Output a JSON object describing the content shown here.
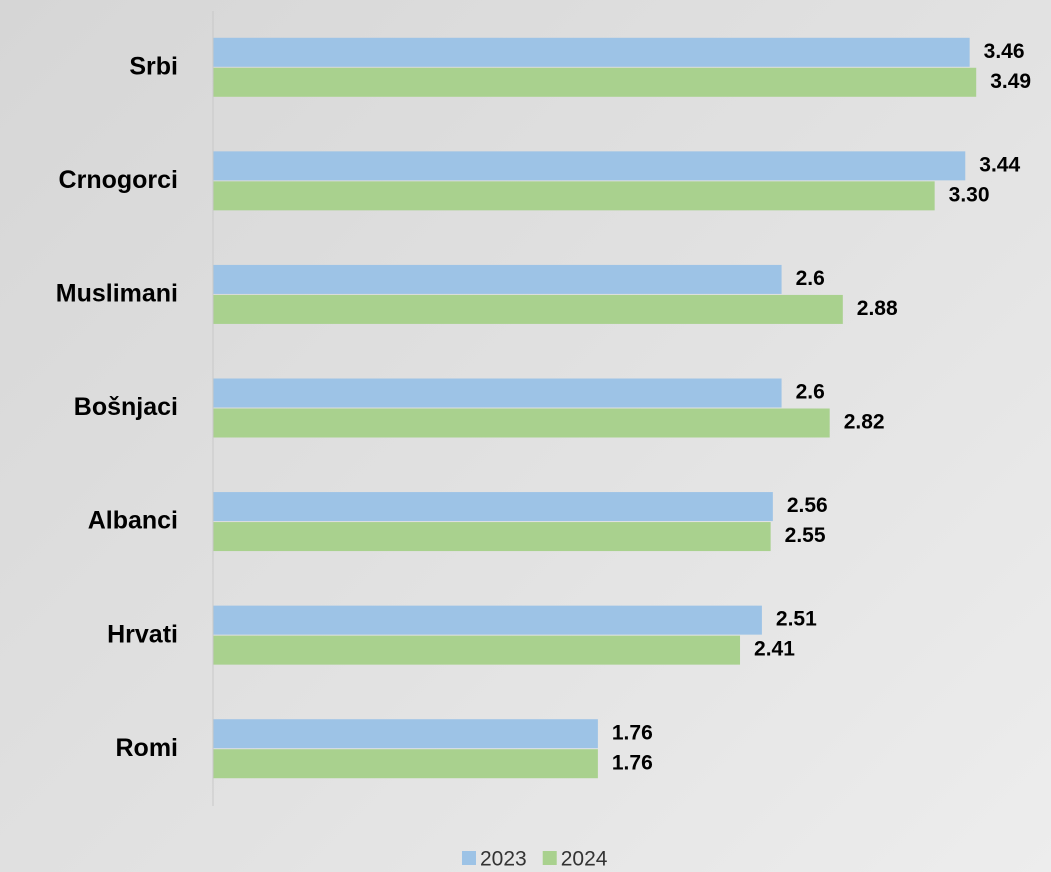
{
  "chart_data": {
    "type": "bar",
    "orientation": "horizontal",
    "categories": [
      "Srbi",
      "Crnogorci",
      "Muslimani",
      "Bošnjaci",
      "Albanci",
      "Hrvati",
      "Romi"
    ],
    "series": [
      {
        "name": "2023",
        "color": "#9dc3e6",
        "values": [
          3.46,
          3.44,
          2.6,
          2.6,
          2.56,
          2.51,
          1.76
        ]
      },
      {
        "name": "2024",
        "color": "#a9d18e",
        "values": [
          3.49,
          3.3,
          2.88,
          2.82,
          2.55,
          2.41,
          1.76
        ],
        "value_labels": [
          "3.49",
          "3.30",
          "2.88",
          "2.82",
          "2.55",
          "2.41",
          "1.76"
        ]
      }
    ],
    "xlim": [
      0,
      3.8
    ],
    "legend": "bottom"
  }
}
